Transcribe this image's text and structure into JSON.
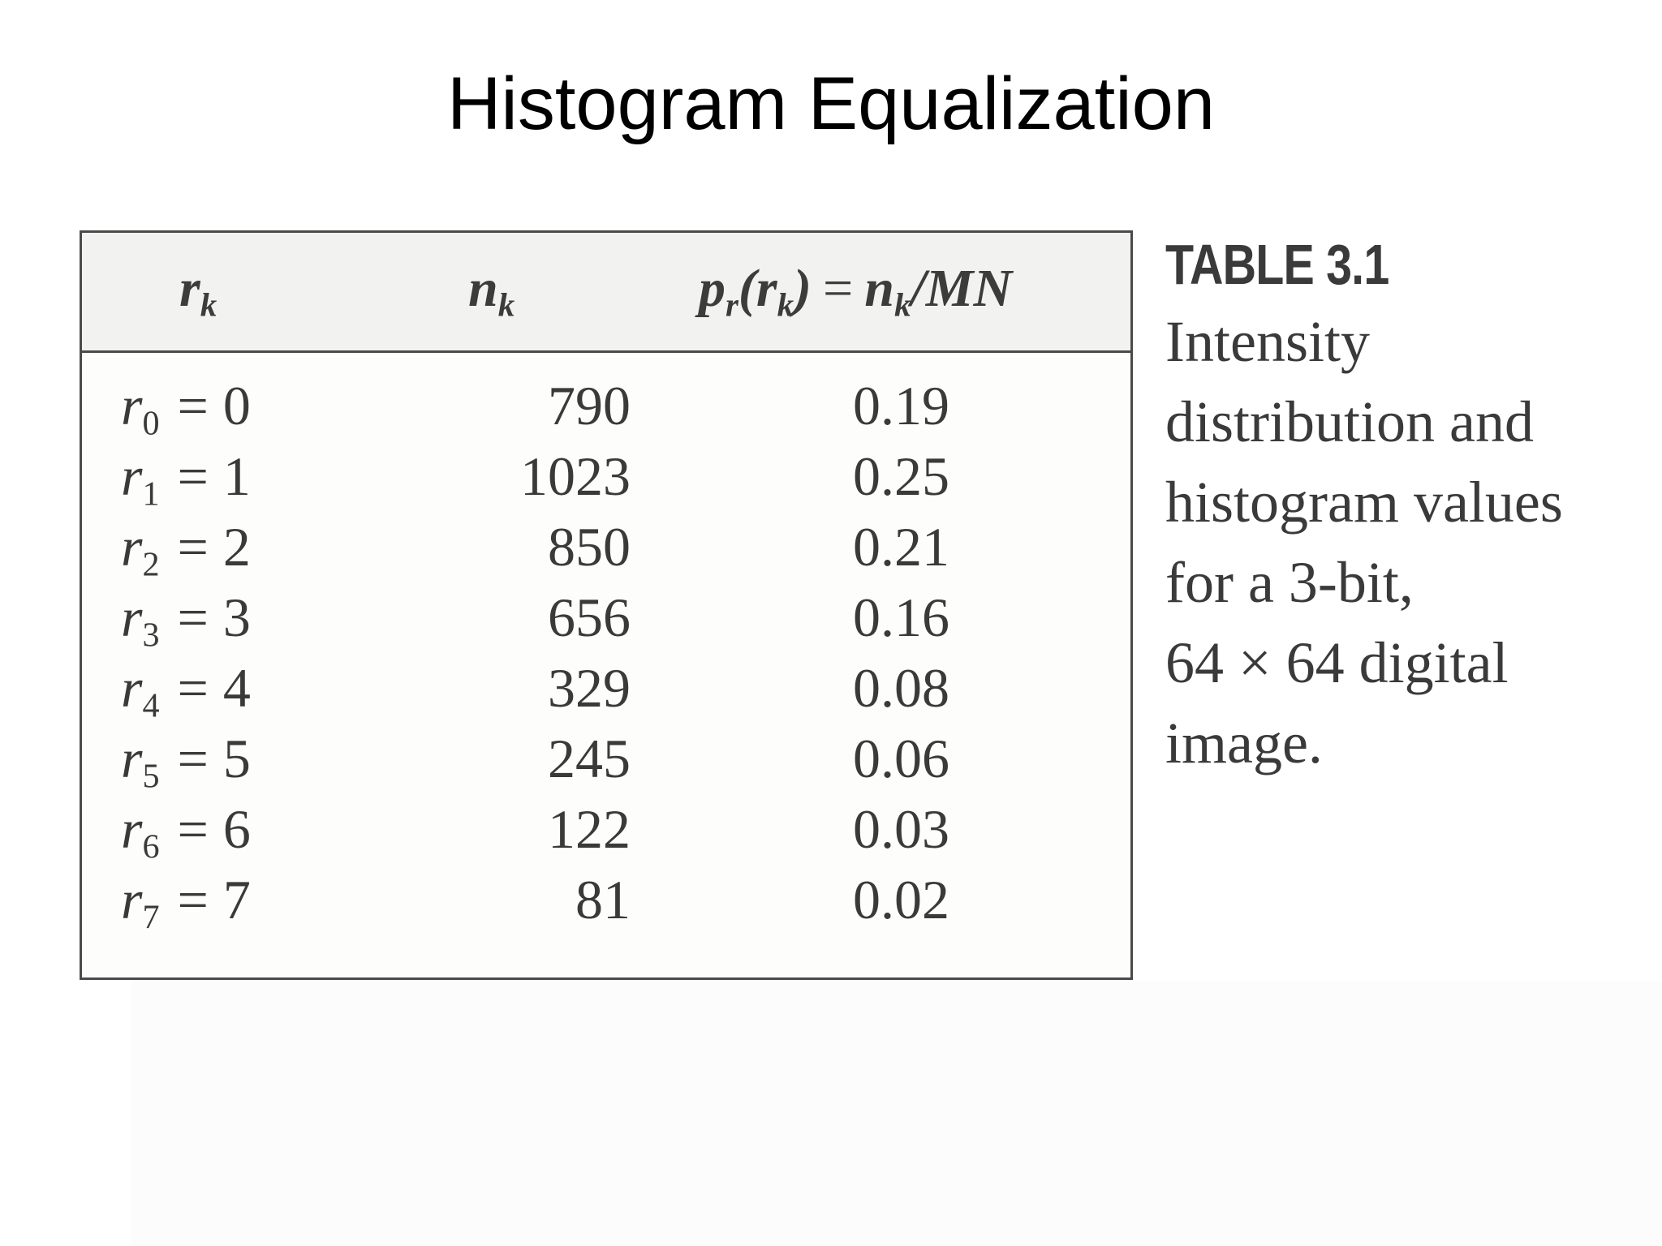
{
  "slide": {
    "title": "Histogram Equalization"
  },
  "table": {
    "headers": {
      "col1": {
        "symbol": "r",
        "sub": "k"
      },
      "col2": {
        "symbol": "n",
        "sub": "k"
      },
      "col3": {
        "p": "p",
        "p_sub": "r",
        "arg_symbol": "r",
        "arg_sub": "k",
        "equals": "=",
        "rhs_symbol": "n",
        "rhs_sub": "k",
        "rhs_denominator": "/MN"
      }
    },
    "rows": [
      {
        "r_symbol": "r",
        "r_sub": "0",
        "equals": "=",
        "r_value": "0",
        "n": "790",
        "p": "0.19"
      },
      {
        "r_symbol": "r",
        "r_sub": "1",
        "equals": "=",
        "r_value": "1",
        "n": "1023",
        "p": "0.25"
      },
      {
        "r_symbol": "r",
        "r_sub": "2",
        "equals": "=",
        "r_value": "2",
        "n": "850",
        "p": "0.21"
      },
      {
        "r_symbol": "r",
        "r_sub": "3",
        "equals": "=",
        "r_value": "3",
        "n": "656",
        "p": "0.16"
      },
      {
        "r_symbol": "r",
        "r_sub": "4",
        "equals": "=",
        "r_value": "4",
        "n": "329",
        "p": "0.08"
      },
      {
        "r_symbol": "r",
        "r_sub": "5",
        "equals": "=",
        "r_value": "5",
        "n": "245",
        "p": "0.06"
      },
      {
        "r_symbol": "r",
        "r_sub": "6",
        "equals": "=",
        "r_value": "6",
        "n": "122",
        "p": "0.03"
      },
      {
        "r_symbol": "r",
        "r_sub": "7",
        "equals": "=",
        "r_value": "7",
        "n": "81",
        "p": "0.02"
      }
    ]
  },
  "caption": {
    "label": "TABLE 3.1",
    "lines": [
      "Intensity",
      "distribution and",
      "histogram values",
      "for a 3-bit,",
      "64 × 64 digital",
      "image."
    ]
  }
}
